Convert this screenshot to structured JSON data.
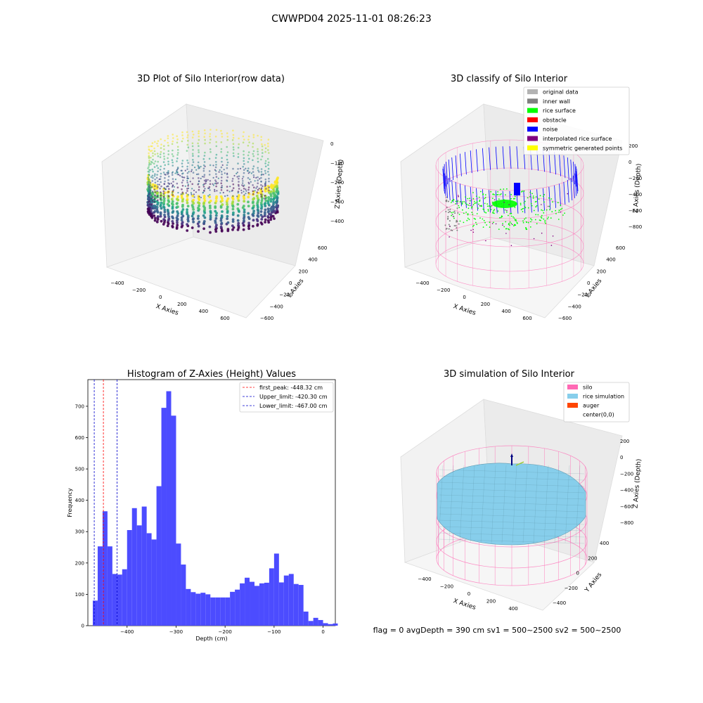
{
  "figure": {
    "suptitle": "CWWPD04 2025-11-01 08:26:23",
    "footer": "flag = 0     avgDepth = 390 cm  sv1 = 500~2500  sv2 = 500~2500"
  },
  "colors": {
    "original_data": "#b3b3b3",
    "inner_wall": "#808080",
    "rice_surface": "#00ff00",
    "obstacle": "#ff0000",
    "noise": "#0000ff",
    "interpolated": "#800080",
    "symmetric": "#ffff00",
    "silo": "#ff69b4",
    "rice_simulation": "#87ceeb",
    "auger": "#ff4500",
    "hist_bar": "#4c4cff",
    "first_peak_line": "#ff0000",
    "limit_line": "#0000cc"
  },
  "chart_data": [
    {
      "type": "scatter3d",
      "title": "3D Plot of Silo Interior(row data)",
      "xlabel": "X Axies",
      "ylabel": "Y Axies",
      "zlabel": "Z Axies (Depth)",
      "x_ticks": [
        "−400",
        "−200",
        "0",
        "200",
        "400",
        "600"
      ],
      "y_ticks": [
        "600",
        "400",
        "200",
        "0",
        "−200",
        "−400",
        "−600"
      ],
      "z_ticks": [
        "0",
        "−100",
        "−200",
        "−300",
        "−400"
      ],
      "xlim": [
        -500,
        650
      ],
      "ylim": [
        -650,
        650
      ],
      "zlim": [
        -480,
        10
      ]
    },
    {
      "type": "scatter3d",
      "title": "3D classify of Silo Interior",
      "xlabel": "X Axies",
      "ylabel": "Y Axies",
      "zlabel": "Z Axies (Depth)",
      "x_ticks": [
        "−400",
        "−200",
        "0",
        "200",
        "400",
        "600"
      ],
      "y_ticks": [
        "600",
        "400",
        "200",
        "0",
        "−200",
        "−400",
        "−600"
      ],
      "z_ticks": [
        "200",
        "0",
        "−200",
        "−400",
        "−600",
        "−800"
      ],
      "legend": {
        "position": "upper-right",
        "entries": [
          "original data",
          "inner wall",
          "rice surface",
          "obstacle",
          "noise",
          "interpolated rice surface",
          "symmetric generated points"
        ]
      }
    },
    {
      "type": "bar",
      "title": "Histogram of Z-Axies (Height) Values",
      "xlabel": "Depth (cm)",
      "ylabel": "Frequency",
      "xlim": [
        -480,
        25
      ],
      "ylim": [
        0,
        785
      ],
      "x_ticks": [
        "−400",
        "−300",
        "−200",
        "−100",
        "0"
      ],
      "y_ticks": [
        "0",
        "100",
        "200",
        "300",
        "400",
        "500",
        "600",
        "700"
      ],
      "bin_start": -470,
      "bin_width": 10,
      "values": [
        80,
        253,
        365,
        253,
        165,
        163,
        180,
        305,
        375,
        320,
        380,
        295,
        275,
        445,
        695,
        748,
        670,
        262,
        195,
        117,
        107,
        102,
        105,
        100,
        90,
        90,
        90,
        90,
        108,
        115,
        135,
        153,
        140,
        127,
        135,
        137,
        183,
        230,
        138,
        160,
        165,
        133,
        130,
        45,
        15,
        25,
        18,
        8,
        5,
        7
      ],
      "vlines": [
        {
          "label": "first_peak: -448.32 cm",
          "x": -448.32,
          "color": "#ff0000"
        },
        {
          "label": "Upper_limit: -420.30 cm",
          "x": -420.3,
          "color": "#0000cc"
        },
        {
          "label": "Lower_limit: -467.00 cm",
          "x": -467.0,
          "color": "#0000cc"
        }
      ],
      "legend": {
        "position": "upper-right"
      }
    },
    {
      "type": "surface3d",
      "title": "3D simulation of Silo Interior",
      "xlabel": "X Axies",
      "ylabel": "Y Axies",
      "zlabel": "Z Axies (Depth)",
      "x_ticks": [
        "−400",
        "−200",
        "0",
        "200",
        "400"
      ],
      "y_ticks": [
        "400",
        "200",
        "0",
        "−200",
        "−400"
      ],
      "z_ticks": [
        "200",
        "0",
        "−200",
        "−400",
        "−600",
        "−800"
      ],
      "legend": {
        "position": "upper-right",
        "entries": [
          "silo",
          "rice simulation",
          "auger",
          "center(0,0)"
        ]
      }
    }
  ]
}
